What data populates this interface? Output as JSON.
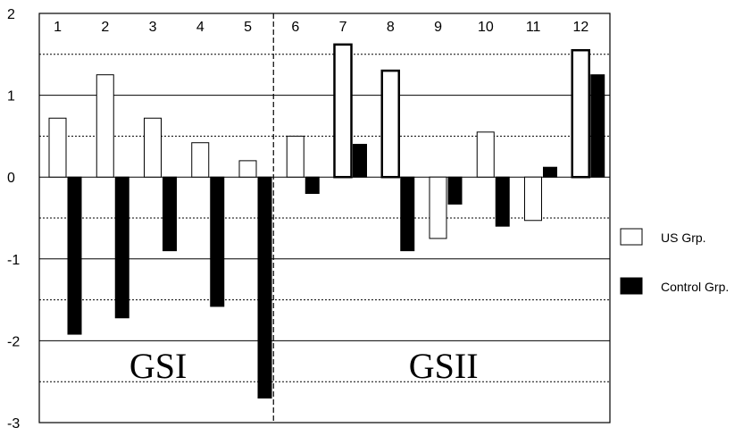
{
  "chart_data": {
    "type": "bar",
    "categories": [
      "1",
      "2",
      "3",
      "4",
      "5",
      "6",
      "7",
      "8",
      "9",
      "10",
      "11",
      "12"
    ],
    "series": [
      {
        "name": "US Grp.",
        "values": [
          0.72,
          1.25,
          0.72,
          0.42,
          0.2,
          0.5,
          1.62,
          1.3,
          -0.75,
          0.55,
          -0.53,
          1.55
        ],
        "color": "#ffffff",
        "stroke": "#000000"
      },
      {
        "name": "Control Grp.",
        "values": [
          -1.92,
          -1.72,
          -0.9,
          -1.58,
          -2.7,
          -0.2,
          0.4,
          -0.9,
          -0.33,
          -0.6,
          0.12,
          1.25
        ],
        "color": "#000000",
        "stroke": "#000000"
      }
    ],
    "groups": [
      {
        "label": "GSI",
        "categories": [
          "1",
          "2",
          "3",
          "4",
          "5"
        ]
      },
      {
        "label": "GSII",
        "categories": [
          "6",
          "7",
          "8",
          "9",
          "10",
          "11",
          "12"
        ]
      }
    ],
    "ylim": [
      -3,
      2
    ],
    "y_ticks": [
      "2",
      "1",
      "0",
      "-1",
      "-2",
      "-3"
    ],
    "y_tick_values": [
      2,
      1,
      0,
      -1,
      -2,
      -3
    ],
    "grid": {
      "major": [
        1,
        0,
        -1,
        -2
      ],
      "minor_dotted": [
        1.5,
        0.5,
        -0.5,
        -1.5,
        -2.5
      ]
    },
    "legend_position": "right",
    "title": "",
    "xlabel": "",
    "ylabel": ""
  }
}
